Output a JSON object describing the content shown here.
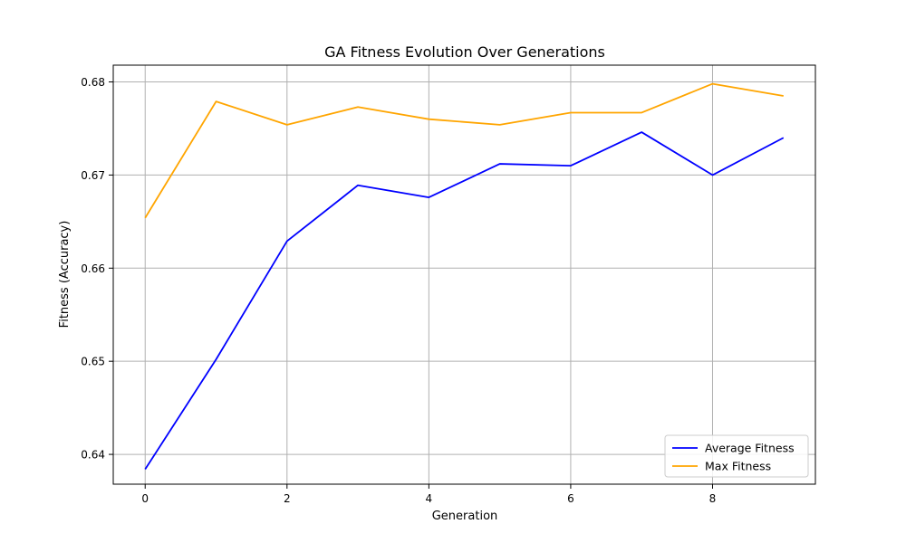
{
  "chart_data": {
    "type": "line",
    "title": "GA Fitness Evolution Over Generations",
    "xlabel": "Generation",
    "ylabel": "Fitness (Accuracy)",
    "x": [
      0,
      1,
      2,
      3,
      4,
      5,
      6,
      7,
      8,
      9
    ],
    "xlim": [
      -0.45,
      9.45
    ],
    "ylim": [
      0.6368,
      0.6818
    ],
    "xticks": [
      0,
      2,
      4,
      6,
      8
    ],
    "yticks": [
      0.64,
      0.65,
      0.66,
      0.67,
      0.68
    ],
    "xtick_labels": [
      "0",
      "2",
      "4",
      "6",
      "8"
    ],
    "ytick_labels": [
      "0.64",
      "0.65",
      "0.66",
      "0.67",
      "0.68"
    ],
    "grid": true,
    "legend_position": "lower-right",
    "series": [
      {
        "name": "Average Fitness",
        "color": "#0000ff",
        "values": [
          0.6384,
          0.6502,
          0.6629,
          0.6689,
          0.6676,
          0.6712,
          0.671,
          0.6746,
          0.67,
          0.674
        ]
      },
      {
        "name": "Max Fitness",
        "color": "#ffa500",
        "values": [
          0.6654,
          0.6779,
          0.6754,
          0.6773,
          0.676,
          0.6754,
          0.6767,
          0.6767,
          0.6798,
          0.6785
        ]
      }
    ]
  }
}
